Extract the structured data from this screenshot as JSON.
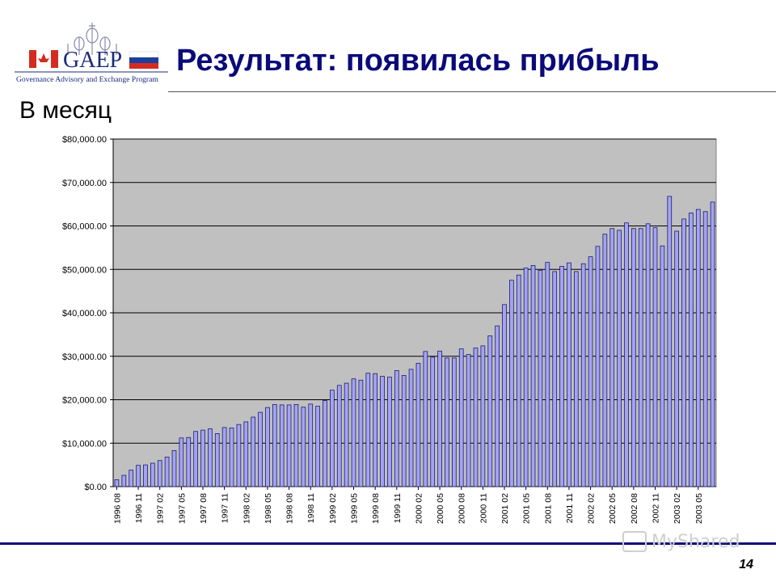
{
  "logo": {
    "text": "GAEP",
    "caption": "Governance Advisory and Exchange Program"
  },
  "title": "Результат: появилась прибыль",
  "subtitle": "В месяц",
  "page_number": "14",
  "watermark": "MyShared",
  "colors": {
    "title": "#0a0a7a",
    "plot_bg": "#c0c0c0",
    "bar_fill": "#a4a4ee",
    "bar_stroke": "#1a1a7a",
    "footer_rule": "#0a0a7a"
  },
  "chart_data": {
    "type": "bar",
    "title": "",
    "xlabel": "",
    "ylabel": "",
    "ylim": [
      0,
      80000
    ],
    "yticks": [
      0,
      10000,
      20000,
      30000,
      40000,
      50000,
      60000,
      70000,
      80000
    ],
    "ytick_labels": [
      "$0.00",
      "$10,000.00",
      "$20,000.00",
      "$30,000.00",
      "$40,000.00",
      "$50,000.00",
      "$60,000.00",
      "$70,000.00",
      "$80,000.00"
    ],
    "grid": true,
    "legend": "none",
    "categories": [
      "1996 08",
      "1996 09",
      "1996 10",
      "1996 11",
      "1996 12",
      "1997 01",
      "1997 02",
      "1997 03",
      "1997 04",
      "1997 05",
      "1997 06",
      "1997 07",
      "1997 08",
      "1997 09",
      "1997 10",
      "1997 11",
      "1997 12",
      "1998 01",
      "1998 02",
      "1998 03",
      "1998 04",
      "1998 05",
      "1998 06",
      "1998 07",
      "1998 08",
      "1998 09",
      "1998 10",
      "1998 11",
      "1998 12",
      "1999 01",
      "1999 02",
      "1999 03",
      "1999 04",
      "1999 05",
      "1999 06",
      "1999 07",
      "1999 08",
      "1999 09",
      "1999 10",
      "1999 11",
      "1999 12",
      "2000 01",
      "2000 02",
      "2000 03",
      "2000 04",
      "2000 05",
      "2000 06",
      "2000 07",
      "2000 08",
      "2000 09",
      "2000 10",
      "2000 11",
      "2000 12",
      "2001 01",
      "2001 02",
      "2001 03",
      "2001 04",
      "2001 05",
      "2001 06",
      "2001 07",
      "2001 08",
      "2001 09",
      "2001 10",
      "2001 11",
      "2001 12",
      "2002 01",
      "2002 02",
      "2002 03",
      "2002 04",
      "2002 05",
      "2002 06",
      "2002 07",
      "2002 08",
      "2002 09",
      "2002 10",
      "2002 11",
      "2002 12",
      "2003 01",
      "2003 02",
      "2003 03",
      "2003 04",
      "2003 05",
      "2003 06",
      "2003 07"
    ],
    "tick_labels": [
      "1996 08",
      "",
      "",
      "1996 11",
      "",
      "",
      "1997 02",
      "",
      "",
      "1997 05",
      "",
      "",
      "1997 08",
      "",
      "",
      "1997 11",
      "",
      "",
      "1998 02",
      "",
      "",
      "1998 05",
      "",
      "",
      "1998 08",
      "",
      "",
      "1998 11",
      "",
      "",
      "1999 02",
      "",
      "",
      "1999 05",
      "",
      "",
      "1999 08",
      "",
      "",
      "1999 11",
      "",
      "",
      "2000 02",
      "",
      "",
      "2000 05",
      "",
      "",
      "2000 08",
      "",
      "",
      "2000 11",
      "",
      "",
      "2001 02",
      "",
      "",
      "2001 05",
      "",
      "",
      "2001 08",
      "",
      "",
      "2001 11",
      "",
      "",
      "2002 02",
      "",
      "",
      "2002 05",
      "",
      "",
      "2002 08",
      "",
      "",
      "2002 11",
      "",
      "",
      "2003 02",
      "",
      "",
      "2003 05",
      "",
      ""
    ],
    "values": [
      1600,
      2600,
      3800,
      4900,
      5000,
      5400,
      6000,
      6800,
      8300,
      11200,
      11300,
      12700,
      13000,
      13300,
      12200,
      13600,
      13500,
      14300,
      14900,
      16000,
      17100,
      18200,
      18900,
      18800,
      18800,
      18900,
      18300,
      19000,
      18500,
      19800,
      22200,
      23300,
      23800,
      24800,
      24500,
      26100,
      26000,
      25400,
      25200,
      26700,
      25600,
      27000,
      28400,
      31100,
      29800,
      31200,
      29600,
      29600,
      31700,
      30400,
      31900,
      32400,
      34700,
      37000,
      41900,
      47500,
      48700,
      50300,
      50900,
      49800,
      51600,
      49500,
      50700,
      51500,
      49500,
      51300,
      52900,
      55300,
      58100,
      59400,
      59000,
      60700,
      59400,
      59400,
      60500,
      59600,
      55400,
      66800,
      58800,
      61600,
      63000,
      63800,
      63300,
      65500
    ]
  }
}
